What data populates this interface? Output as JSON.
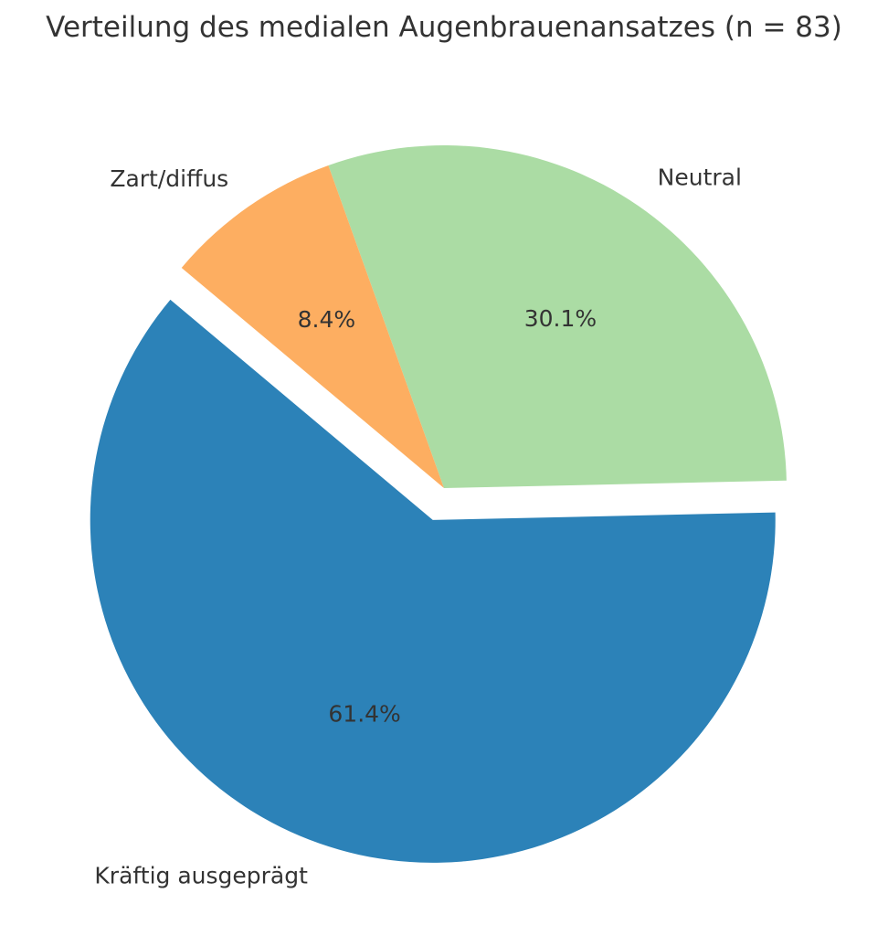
{
  "chart_data": {
    "type": "pie",
    "title": "Verteilung des medialen Augenbrauenansatzes (n = 83)",
    "slices": [
      {
        "label": "Kräftig ausgeprägt",
        "value": 61.4,
        "pct_label": "61.4%",
        "color": "#2c82b8",
        "exploded": true
      },
      {
        "label": "Neutral",
        "value": 30.1,
        "pct_label": "30.1%",
        "color": "#abdca4",
        "exploded": false
      },
      {
        "label": "Zart/diffus",
        "value": 8.4,
        "pct_label": "8.4%",
        "color": "#fdae61",
        "exploded": false
      }
    ],
    "start_angle_deg": 140,
    "direction": "counterclockwise",
    "legend": "none"
  }
}
